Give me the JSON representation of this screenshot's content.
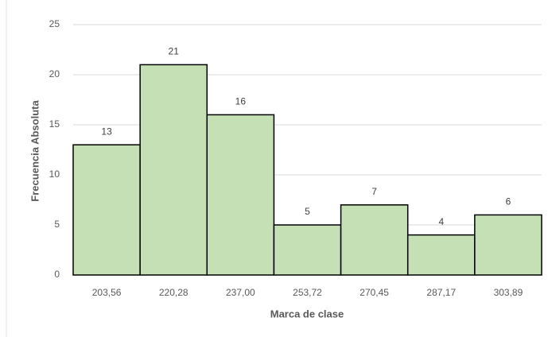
{
  "chart_data": {
    "type": "bar",
    "x_label": "Marca de clase",
    "y_label": "Frecuencia Absoluta",
    "categories": [
      "203,56",
      "220,28",
      "237,00",
      "253,72",
      "270,45",
      "287,17",
      "303,89"
    ],
    "values": [
      13,
      21,
      16,
      5,
      7,
      4,
      6
    ],
    "color": "#c5e0b4",
    "edge_color": "#000000",
    "ylim": [
      0,
      25
    ],
    "yticks": [
      0,
      5,
      10,
      15,
      20,
      25
    ],
    "grid": true
  }
}
